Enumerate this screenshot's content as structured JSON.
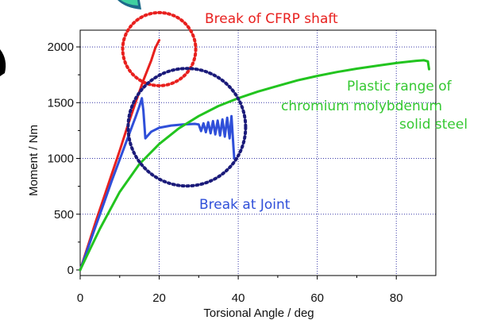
{
  "chart_data": {
    "type": "line",
    "xlabel": "Torsional Angle / deg",
    "ylabel": "Moment / Nm",
    "xlim": [
      0,
      90
    ],
    "ylim": [
      -50,
      2150
    ],
    "x_ticks": [
      0,
      20,
      40,
      60,
      80
    ],
    "y_ticks": [
      0,
      500,
      1000,
      1500,
      2000
    ],
    "grid": true,
    "series": [
      {
        "color": "#e8201e",
        "x": [
          0,
          2,
          4,
          6,
          8,
          10,
          12,
          14,
          16,
          18,
          19,
          20
        ],
        "y": [
          0,
          220,
          440,
          650,
          860,
          1070,
          1290,
          1500,
          1700,
          1880,
          1990,
          2060
        ]
      },
      {
        "color": "#2f4fd9",
        "x": [
          0,
          2,
          4,
          6,
          8,
          10,
          12,
          14,
          15,
          15.6,
          16,
          16.5,
          17,
          18,
          20,
          23,
          26,
          29,
          30,
          30.6,
          31.2,
          31.8,
          32.4,
          33,
          33.6,
          34.2,
          34.8,
          35.4,
          36,
          36.6,
          37.2,
          37.8,
          38.3,
          38.8,
          39,
          39.3
        ],
        "y": [
          0,
          200,
          400,
          600,
          800,
          990,
          1180,
          1370,
          1470,
          1540,
          1430,
          1180,
          1200,
          1240,
          1275,
          1295,
          1305,
          1310,
          1305,
          1245,
          1315,
          1235,
          1325,
          1225,
          1335,
          1215,
          1340,
          1205,
          1350,
          1195,
          1365,
          1180,
          1380,
          1100,
          1000,
          1000
        ]
      },
      {
        "color": "#22c41f",
        "x": [
          0,
          2,
          5,
          10,
          15,
          20,
          25,
          30,
          35,
          40,
          45,
          50,
          55,
          60,
          65,
          70,
          75,
          80,
          85,
          87,
          88,
          88.3
        ],
        "y": [
          0,
          150,
          370,
          700,
          950,
          1130,
          1270,
          1380,
          1470,
          1540,
          1600,
          1650,
          1700,
          1740,
          1775,
          1805,
          1830,
          1855,
          1875,
          1880,
          1870,
          1800
        ]
      }
    ],
    "annotations": [
      {
        "text": "Break of CFRP shaft",
        "color": "#e8201e"
      },
      {
        "text": "Break at Joint",
        "color": "#2f4fd9"
      },
      {
        "text": "Plastic range of",
        "color": "#35c832"
      },
      {
        "text": "chromium molybdenum",
        "color": "#35c832"
      },
      {
        "text": "solid steel",
        "color": "#35c832"
      }
    ],
    "circles": [
      {
        "color": "#e8201e",
        "cx": 20,
        "cy": 1980
      },
      {
        "color": "#1b1b7a",
        "cx": 27,
        "cy": 1280
      }
    ]
  }
}
